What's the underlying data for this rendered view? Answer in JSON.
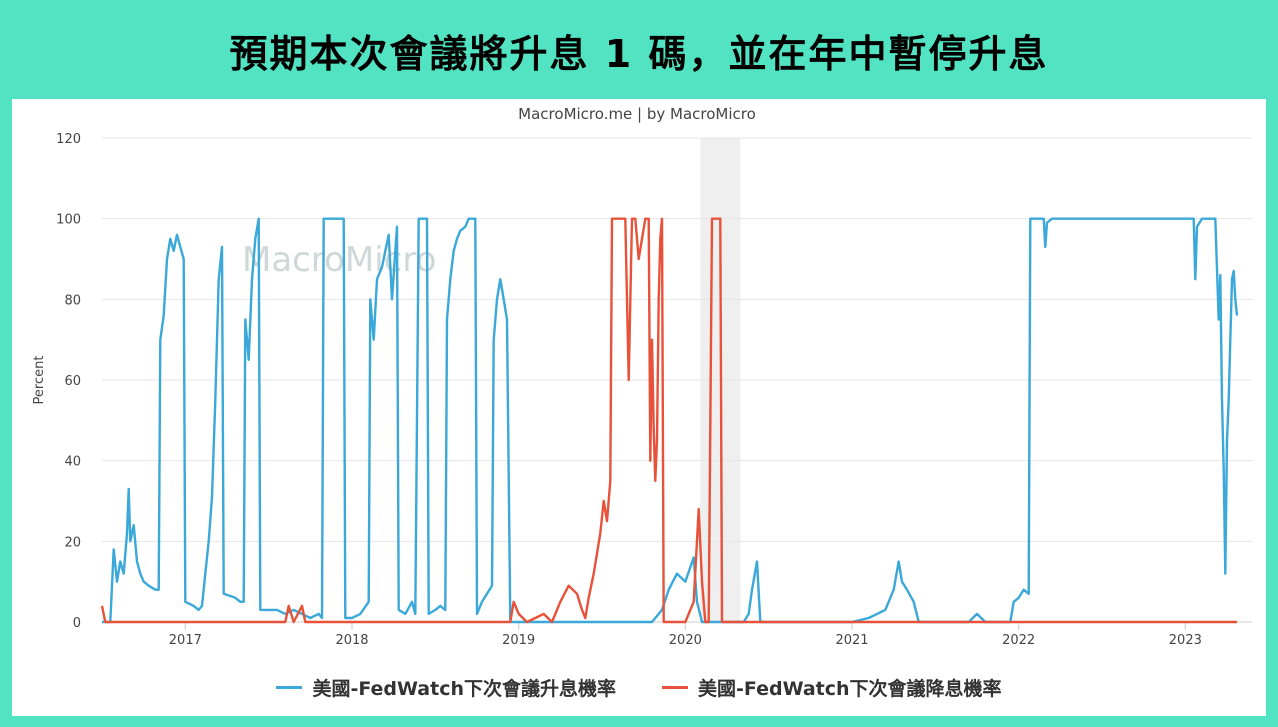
{
  "headline": "預期本次會議將升息 1 碼，並在年中暫停升息",
  "credit": "MacroMicro.me | by MacroMicro",
  "watermark": "MacroMicro",
  "chart_data": {
    "type": "line",
    "title": "",
    "ylabel": "Percent",
    "xlabel": "",
    "ylim": [
      0,
      120
    ],
    "yticks": [
      0,
      20,
      40,
      60,
      80,
      100,
      120
    ],
    "xlim": [
      2016.5,
      2023.4
    ],
    "xticks": [
      {
        "value": 2017,
        "label": "2017"
      },
      {
        "value": 2018,
        "label": "2018"
      },
      {
        "value": 2019,
        "label": "2019"
      },
      {
        "value": 2020,
        "label": "2020"
      },
      {
        "value": 2021,
        "label": "2021"
      },
      {
        "value": 2022,
        "label": "2022"
      },
      {
        "value": 2023,
        "label": "2023"
      }
    ],
    "grid": true,
    "legend_position": "bottom-center",
    "shaded_periods": [
      {
        "from": 2020.09,
        "to": 2020.33
      }
    ],
    "series": [
      {
        "name": "美國-FedWatch下次會議升息機率",
        "color": "#3aa8d8",
        "points": [
          [
            2016.5,
            0
          ],
          [
            2016.55,
            0
          ],
          [
            2016.57,
            18
          ],
          [
            2016.59,
            10
          ],
          [
            2016.61,
            15
          ],
          [
            2016.63,
            12
          ],
          [
            2016.65,
            22
          ],
          [
            2016.66,
            33
          ],
          [
            2016.67,
            20
          ],
          [
            2016.69,
            24
          ],
          [
            2016.71,
            15
          ],
          [
            2016.73,
            12
          ],
          [
            2016.75,
            10
          ],
          [
            2016.78,
            9
          ],
          [
            2016.82,
            8
          ],
          [
            2016.84,
            8
          ],
          [
            2016.85,
            70
          ],
          [
            2016.87,
            76
          ],
          [
            2016.89,
            90
          ],
          [
            2016.91,
            95
          ],
          [
            2016.93,
            92
          ],
          [
            2016.95,
            96
          ],
          [
            2016.97,
            93
          ],
          [
            2016.99,
            90
          ],
          [
            2017.0,
            5
          ],
          [
            2017.05,
            4
          ],
          [
            2017.08,
            3
          ],
          [
            2017.1,
            4
          ],
          [
            2017.12,
            12
          ],
          [
            2017.14,
            20
          ],
          [
            2017.16,
            31
          ],
          [
            2017.18,
            55
          ],
          [
            2017.2,
            85
          ],
          [
            2017.22,
            93
          ],
          [
            2017.23,
            7
          ],
          [
            2017.3,
            6
          ],
          [
            2017.33,
            5
          ],
          [
            2017.35,
            5
          ],
          [
            2017.36,
            75
          ],
          [
            2017.38,
            65
          ],
          [
            2017.4,
            85
          ],
          [
            2017.42,
            95
          ],
          [
            2017.44,
            100
          ],
          [
            2017.45,
            3
          ],
          [
            2017.5,
            3
          ],
          [
            2017.55,
            3
          ],
          [
            2017.6,
            2
          ],
          [
            2017.65,
            3
          ],
          [
            2017.7,
            2
          ],
          [
            2017.75,
            1
          ],
          [
            2017.8,
            2
          ],
          [
            2017.82,
            1
          ],
          [
            2017.83,
            100
          ],
          [
            2017.95,
            100
          ],
          [
            2017.96,
            1
          ],
          [
            2018.0,
            1
          ],
          [
            2018.05,
            2
          ],
          [
            2018.1,
            5
          ],
          [
            2018.11,
            80
          ],
          [
            2018.13,
            70
          ],
          [
            2018.15,
            85
          ],
          [
            2018.18,
            88
          ],
          [
            2018.2,
            92
          ],
          [
            2018.22,
            96
          ],
          [
            2018.24,
            80
          ],
          [
            2018.27,
            98
          ],
          [
            2018.28,
            3
          ],
          [
            2018.32,
            2
          ],
          [
            2018.36,
            5
          ],
          [
            2018.38,
            2
          ],
          [
            2018.4,
            100
          ],
          [
            2018.45,
            100
          ],
          [
            2018.46,
            2
          ],
          [
            2018.5,
            3
          ],
          [
            2018.53,
            4
          ],
          [
            2018.56,
            3
          ],
          [
            2018.57,
            75
          ],
          [
            2018.59,
            85
          ],
          [
            2018.61,
            92
          ],
          [
            2018.63,
            95
          ],
          [
            2018.65,
            97
          ],
          [
            2018.68,
            98
          ],
          [
            2018.7,
            100
          ],
          [
            2018.72,
            100
          ],
          [
            2018.74,
            100
          ],
          [
            2018.75,
            2
          ],
          [
            2018.78,
            5
          ],
          [
            2018.81,
            7
          ],
          [
            2018.84,
            9
          ],
          [
            2018.85,
            70
          ],
          [
            2018.87,
            80
          ],
          [
            2018.89,
            85
          ],
          [
            2018.91,
            80
          ],
          [
            2018.93,
            75
          ],
          [
            2018.95,
            0
          ],
          [
            2019.0,
            0
          ],
          [
            2019.5,
            0
          ],
          [
            2019.8,
            0
          ],
          [
            2019.86,
            3
          ],
          [
            2019.9,
            8
          ],
          [
            2019.95,
            12
          ],
          [
            2020.0,
            10
          ],
          [
            2020.05,
            16
          ],
          [
            2020.07,
            5
          ],
          [
            2020.1,
            0
          ],
          [
            2020.2,
            0
          ],
          [
            2020.3,
            0
          ],
          [
            2020.35,
            0
          ],
          [
            2020.38,
            2
          ],
          [
            2020.4,
            8
          ],
          [
            2020.43,
            15
          ],
          [
            2020.45,
            0
          ],
          [
            2020.8,
            0
          ],
          [
            2021.0,
            0
          ],
          [
            2021.1,
            1
          ],
          [
            2021.2,
            3
          ],
          [
            2021.25,
            8
          ],
          [
            2021.28,
            15
          ],
          [
            2021.3,
            10
          ],
          [
            2021.33,
            8
          ],
          [
            2021.37,
            5
          ],
          [
            2021.4,
            0
          ],
          [
            2021.7,
            0
          ],
          [
            2021.75,
            2
          ],
          [
            2021.8,
            0
          ],
          [
            2021.95,
            0
          ],
          [
            2021.97,
            5
          ],
          [
            2022.0,
            6
          ],
          [
            2022.03,
            8
          ],
          [
            2022.06,
            7
          ],
          [
            2022.07,
            100
          ],
          [
            2022.15,
            100
          ],
          [
            2022.16,
            93
          ],
          [
            2022.17,
            99
          ],
          [
            2022.2,
            100
          ],
          [
            2022.6,
            100
          ],
          [
            2023.0,
            100
          ],
          [
            2023.05,
            100
          ],
          [
            2023.06,
            85
          ],
          [
            2023.07,
            98
          ],
          [
            2023.1,
            100
          ],
          [
            2023.18,
            100
          ],
          [
            2023.2,
            75
          ],
          [
            2023.21,
            86
          ],
          [
            2023.22,
            55
          ],
          [
            2023.23,
            38
          ],
          [
            2023.24,
            12
          ],
          [
            2023.25,
            45
          ],
          [
            2023.26,
            55
          ],
          [
            2023.27,
            70
          ],
          [
            2023.28,
            85
          ],
          [
            2023.29,
            87
          ],
          [
            2023.3,
            80
          ],
          [
            2023.31,
            76
          ]
        ]
      },
      {
        "name": "美國-FedWatch下次會議降息機率",
        "color": "#e8523a",
        "points": [
          [
            2016.5,
            4
          ],
          [
            2016.52,
            0
          ],
          [
            2016.6,
            0
          ],
          [
            2016.7,
            0
          ],
          [
            2017.0,
            0
          ],
          [
            2017.5,
            0
          ],
          [
            2017.6,
            0
          ],
          [
            2017.62,
            4
          ],
          [
            2017.65,
            0
          ],
          [
            2017.7,
            4
          ],
          [
            2017.72,
            0
          ],
          [
            2017.75,
            0
          ],
          [
            2018.0,
            0
          ],
          [
            2018.5,
            0
          ],
          [
            2018.95,
            0
          ],
          [
            2018.97,
            5
          ],
          [
            2019.0,
            2
          ],
          [
            2019.05,
            0
          ],
          [
            2019.1,
            1
          ],
          [
            2019.15,
            2
          ],
          [
            2019.2,
            0
          ],
          [
            2019.25,
            5
          ],
          [
            2019.3,
            9
          ],
          [
            2019.35,
            7
          ],
          [
            2019.38,
            3
          ],
          [
            2019.4,
            1
          ],
          [
            2019.42,
            6
          ],
          [
            2019.45,
            12
          ],
          [
            2019.47,
            17
          ],
          [
            2019.49,
            22
          ],
          [
            2019.51,
            30
          ],
          [
            2019.53,
            25
          ],
          [
            2019.55,
            35
          ],
          [
            2019.56,
            100
          ],
          [
            2019.62,
            100
          ],
          [
            2019.64,
            100
          ],
          [
            2019.66,
            60
          ],
          [
            2019.68,
            100
          ],
          [
            2019.7,
            100
          ],
          [
            2019.72,
            90
          ],
          [
            2019.74,
            95
          ],
          [
            2019.76,
            100
          ],
          [
            2019.78,
            100
          ],
          [
            2019.79,
            40
          ],
          [
            2019.8,
            70
          ],
          [
            2019.81,
            48
          ],
          [
            2019.82,
            35
          ],
          [
            2019.83,
            45
          ],
          [
            2019.84,
            80
          ],
          [
            2019.85,
            95
          ],
          [
            2019.86,
            100
          ],
          [
            2019.87,
            0
          ],
          [
            2019.95,
            0
          ],
          [
            2020.0,
            0
          ],
          [
            2020.05,
            5
          ],
          [
            2020.08,
            28
          ],
          [
            2020.1,
            10
          ],
          [
            2020.12,
            0
          ],
          [
            2020.14,
            0
          ],
          [
            2020.16,
            100
          ],
          [
            2020.21,
            100
          ],
          [
            2020.22,
            0
          ],
          [
            2020.4,
            0
          ],
          [
            2021.0,
            0
          ],
          [
            2022.0,
            0
          ],
          [
            2023.0,
            0
          ],
          [
            2023.31,
            0
          ]
        ]
      }
    ]
  },
  "legend": [
    {
      "label": "美國-FedWatch下次會議升息機率",
      "color": "#3aa8d8"
    },
    {
      "label": "美國-FedWatch下次會議降息機率",
      "color": "#e8523a"
    }
  ]
}
